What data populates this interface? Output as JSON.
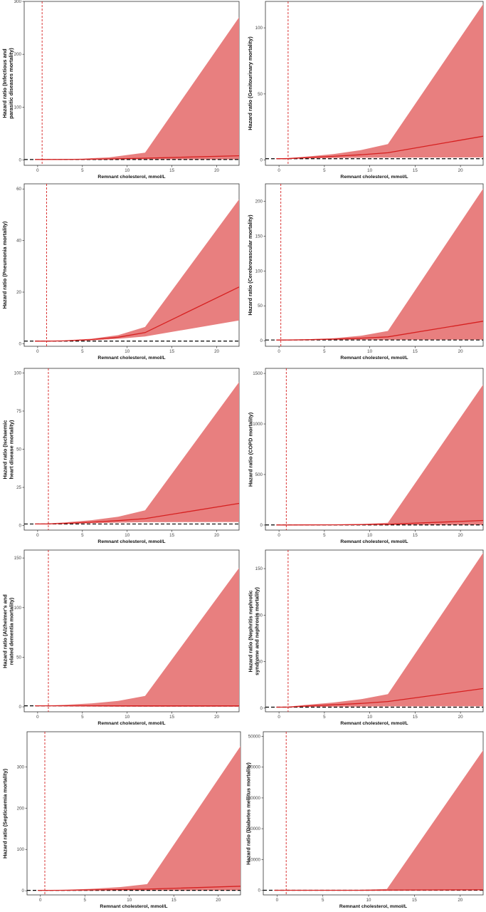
{
  "colors": {
    "ci_fill": "#e87f7f",
    "curve": "#d62020",
    "reference": "#d62020",
    "baseline": "#000000",
    "frame": "#333333"
  },
  "chart_data": [
    {
      "type": "area",
      "ylabel": "Hazard ratio (Infectious and\nparasitic diseases mortality)",
      "xlabel": "Remnant cholesterol, mmol/L",
      "xlim": [
        -1.5,
        22.5
      ],
      "ylim": [
        -10,
        300
      ],
      "xticks": [
        0,
        5,
        10,
        15,
        20
      ],
      "yticks": [
        0,
        100,
        200,
        300
      ],
      "ref_x": 0.5,
      "x": [
        -0.3,
        2,
        5,
        8,
        12,
        22.5
      ],
      "hr": [
        1,
        1,
        1.3,
        2,
        3.5,
        8
      ],
      "lower": [
        0.7,
        0.8,
        0.9,
        1,
        1,
        1
      ],
      "upper": [
        1.3,
        1.5,
        2.5,
        5,
        14,
        270
      ]
    },
    {
      "type": "area",
      "ylabel": "Hazard ratio (Genitourinary mortality)",
      "xlabel": "Remnant cholesterol, mmol/L",
      "xlim": [
        -1.5,
        22.5
      ],
      "ylim": [
        -4,
        120
      ],
      "xticks": [
        0,
        5,
        10,
        15,
        20
      ],
      "yticks": [
        0,
        50,
        100
      ],
      "ref_x": 1.0,
      "x": [
        -0.3,
        1,
        3,
        6,
        9,
        12,
        22.5
      ],
      "hr": [
        1,
        1,
        1.8,
        2.8,
        4,
        5.5,
        18
      ],
      "lower": [
        0.7,
        0.8,
        1.2,
        1.5,
        1.8,
        1.9,
        2
      ],
      "upper": [
        1.3,
        1.5,
        2.5,
        4.5,
        7.5,
        12,
        118
      ]
    },
    {
      "type": "area",
      "ylabel": "Hazard ratio (Pneumonia mortality)",
      "xlabel": "Remnant cholesterol, mmol/L",
      "xlim": [
        -1.5,
        22.5
      ],
      "ylim": [
        -1,
        62
      ],
      "xticks": [
        0,
        5,
        10,
        15,
        20
      ],
      "yticks": [
        0,
        20,
        40,
        60
      ],
      "ref_x": 1.0,
      "x": [
        -0.3,
        1,
        3,
        6,
        9,
        12,
        22.5
      ],
      "hr": [
        1,
        1,
        1.1,
        1.6,
        2.5,
        4.3,
        22
      ],
      "lower": [
        0.8,
        0.9,
        1,
        1.3,
        1.9,
        2.8,
        9
      ],
      "upper": [
        1.2,
        1.1,
        1.3,
        1.9,
        3.3,
        6.5,
        56
      ]
    },
    {
      "type": "area",
      "ylabel": "Hazard ratio (Cerebrovascular mortality)",
      "xlabel": "Remnant cholesterol, mmol/L",
      "xlim": [
        -1.5,
        22.5
      ],
      "ylim": [
        -8,
        225
      ],
      "xticks": [
        0,
        5,
        10,
        15,
        20
      ],
      "yticks": [
        0,
        50,
        100,
        150,
        200
      ],
      "ref_x": 0.2,
      "x": [
        -0.3,
        1,
        3,
        6,
        9,
        12,
        22.5
      ],
      "hr": [
        1,
        1,
        1.4,
        2.2,
        3.5,
        5.5,
        28
      ],
      "lower": [
        0.7,
        0.8,
        1,
        1.2,
        1.3,
        1.3,
        1.5
      ],
      "upper": [
        1.3,
        1.4,
        2,
        3.5,
        7,
        14,
        218
      ]
    },
    {
      "type": "area",
      "ylabel": "Hazard ratio (Ischaemic\nheart disease mortality)",
      "xlabel": "Remnant cholesterol, mmol/L",
      "xlim": [
        -1.5,
        22.5
      ],
      "ylim": [
        -3,
        103
      ],
      "xticks": [
        0,
        5,
        10,
        15,
        20
      ],
      "yticks": [
        0,
        25,
        50,
        75,
        100
      ],
      "ref_x": 1.2,
      "x": [
        -0.3,
        1,
        3,
        6,
        9,
        12,
        22.5
      ],
      "hr": [
        1,
        1,
        1.4,
        2.2,
        3.2,
        4.5,
        14.5
      ],
      "lower": [
        0.8,
        0.9,
        1.1,
        1.5,
        1.9,
        2.2,
        2.3
      ],
      "upper": [
        1.2,
        1.3,
        2,
        3.5,
        5.8,
        10,
        94
      ]
    },
    {
      "type": "area",
      "ylabel": "Hazard ratio (COPD mortality)",
      "xlabel": "Remnant cholesterol, mmol/L",
      "xlim": [
        -1.5,
        22.5
      ],
      "ylim": [
        -50,
        1550
      ],
      "xticks": [
        0,
        5,
        10,
        15,
        20
      ],
      "yticks": [
        0,
        500,
        1000,
        1500
      ],
      "ref_x": 0.8,
      "x": [
        -0.3,
        1,
        3,
        6,
        9,
        12,
        22.5
      ],
      "hr": [
        1,
        1,
        1.5,
        2.5,
        4,
        8,
        45
      ],
      "lower": [
        0.7,
        0.8,
        1,
        1,
        1,
        1,
        1
      ],
      "upper": [
        1.3,
        1.5,
        3,
        6,
        10,
        22,
        1390
      ]
    },
    {
      "type": "area",
      "ylabel": "Hazard ratio (Alzheimer's and\nrelated dementia mortality)",
      "xlabel": "Remnant cholesterol, mmol/L",
      "xlim": [
        -1.5,
        22.5
      ],
      "ylim": [
        -5,
        158
      ],
      "xticks": [
        0,
        5,
        10,
        15,
        20
      ],
      "yticks": [
        0,
        50,
        100,
        150
      ],
      "ref_x": 1.2,
      "x": [
        -0.3,
        1,
        3,
        6,
        9,
        12,
        22.5
      ],
      "hr": [
        1,
        1,
        1,
        1,
        1,
        1,
        1
      ],
      "lower": [
        0.8,
        0.9,
        0.6,
        0.3,
        0.1,
        0.05,
        0.01
      ],
      "upper": [
        1.2,
        1.3,
        2,
        3.5,
        6,
        11,
        140
      ]
    },
    {
      "type": "area",
      "ylabel": "Hazard ratio (Nephritis nephrotic\nsyndrome and nephrosis mortality)",
      "xlabel": "Remnant cholesterol, mmol/L",
      "xlim": [
        -1.5,
        22.5
      ],
      "ylim": [
        -4,
        170
      ],
      "xticks": [
        0,
        5,
        10,
        15,
        20
      ],
      "yticks": [
        0,
        50,
        100,
        150
      ],
      "ref_x": 1.0,
      "x": [
        -0.3,
        1,
        3,
        6,
        9,
        12,
        22.5
      ],
      "hr": [
        1,
        1,
        2.2,
        3.5,
        5,
        7,
        21
      ],
      "lower": [
        0.7,
        0.8,
        1.3,
        1.6,
        1.7,
        1.8,
        2
      ],
      "upper": [
        1.3,
        1.6,
        3.5,
        6,
        9.5,
        15,
        167
      ]
    },
    {
      "type": "area",
      "ylabel": "Hazard ratio (Septicaemia mortality)",
      "xlabel": "Remnant cholesterol, mmol/L",
      "xlim": [
        -1.5,
        22.5
      ],
      "ylim": [
        -10,
        385
      ],
      "xticks": [
        0,
        5,
        10,
        15,
        20
      ],
      "yticks": [
        0,
        100,
        200,
        300
      ],
      "ref_x": 0.5,
      "x": [
        -0.3,
        1,
        3,
        6,
        9,
        12,
        22.5
      ],
      "hr": [
        1,
        1,
        1.2,
        2,
        3,
        4,
        11
      ],
      "lower": [
        0.7,
        0.8,
        0.9,
        0.8,
        0.7,
        0.7,
        0.5
      ],
      "upper": [
        1.3,
        1.4,
        2.5,
        5,
        9,
        16,
        350
      ]
    },
    {
      "type": "area",
      "ylabel": "Hazard ratio (Diabetes mellitus mortality)",
      "xlabel": "Remnant cholesterol, mmol/L",
      "xlim": [
        -1.5,
        22.5
      ],
      "ylim": [
        -1500,
        51500
      ],
      "xticks": [
        0,
        5,
        10,
        15,
        20
      ],
      "yticks": [
        0,
        10000,
        20000,
        30000,
        40000,
        50000
      ],
      "ref_x": 1.0,
      "x": [
        -0.3,
        1,
        3,
        6,
        9,
        12,
        22.5
      ],
      "hr": [
        1,
        1,
        2,
        4,
        8,
        20,
        150
      ],
      "lower": [
        0.7,
        0.8,
        1,
        1,
        1,
        1,
        1
      ],
      "upper": [
        1.3,
        2,
        10,
        40,
        120,
        400,
        45500
      ]
    }
  ]
}
